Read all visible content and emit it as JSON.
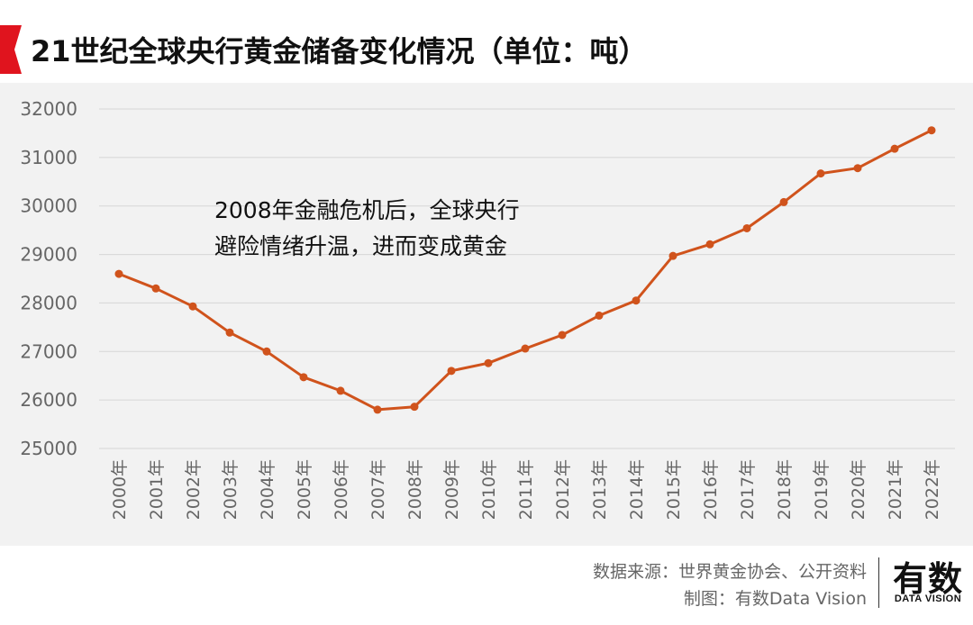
{
  "header": {
    "title": "21世纪全球央行黄金储备变化情况（单位：吨）"
  },
  "chart_data": {
    "type": "line",
    "title": "21世纪全球央行黄金储备变化情况（单位：吨）",
    "categories": [
      "2000年",
      "2001年",
      "2002年",
      "2003年",
      "2004年",
      "2005年",
      "2006年",
      "2007年",
      "2008年",
      "2009年",
      "2010年",
      "2011年",
      "2012年",
      "2013年",
      "2014年",
      "2015年",
      "2016年",
      "2017年",
      "2018年",
      "2019年",
      "2020年",
      "2021年",
      "2022年"
    ],
    "series": [
      {
        "values": [
          28600,
          28300,
          27930,
          27390,
          27000,
          26470,
          26190,
          25800,
          25860,
          26600,
          26760,
          27060,
          27340,
          27740,
          28050,
          28970,
          29210,
          29540,
          30080,
          30670,
          30780,
          31180,
          31560
        ]
      }
    ],
    "yticks": [
      "32000",
      "31000",
      "30000",
      "29000",
      "28000",
      "27000",
      "26000",
      "25000"
    ],
    "ylim": [
      25000,
      32000
    ],
    "grid": true,
    "annotation": [
      "2008年金融危机后，全球央行",
      "避险情绪升温，进而变成黄金"
    ],
    "colors": {
      "line": "#d0531c",
      "grid": "#d6d6d6",
      "axis_text": "#666666"
    }
  },
  "footer": {
    "source": "数据来源：世界黄金协会、公开资料",
    "credit": "制图：有数Data Vision",
    "logo_main": "有数",
    "logo_sub": "DATA VISION"
  }
}
